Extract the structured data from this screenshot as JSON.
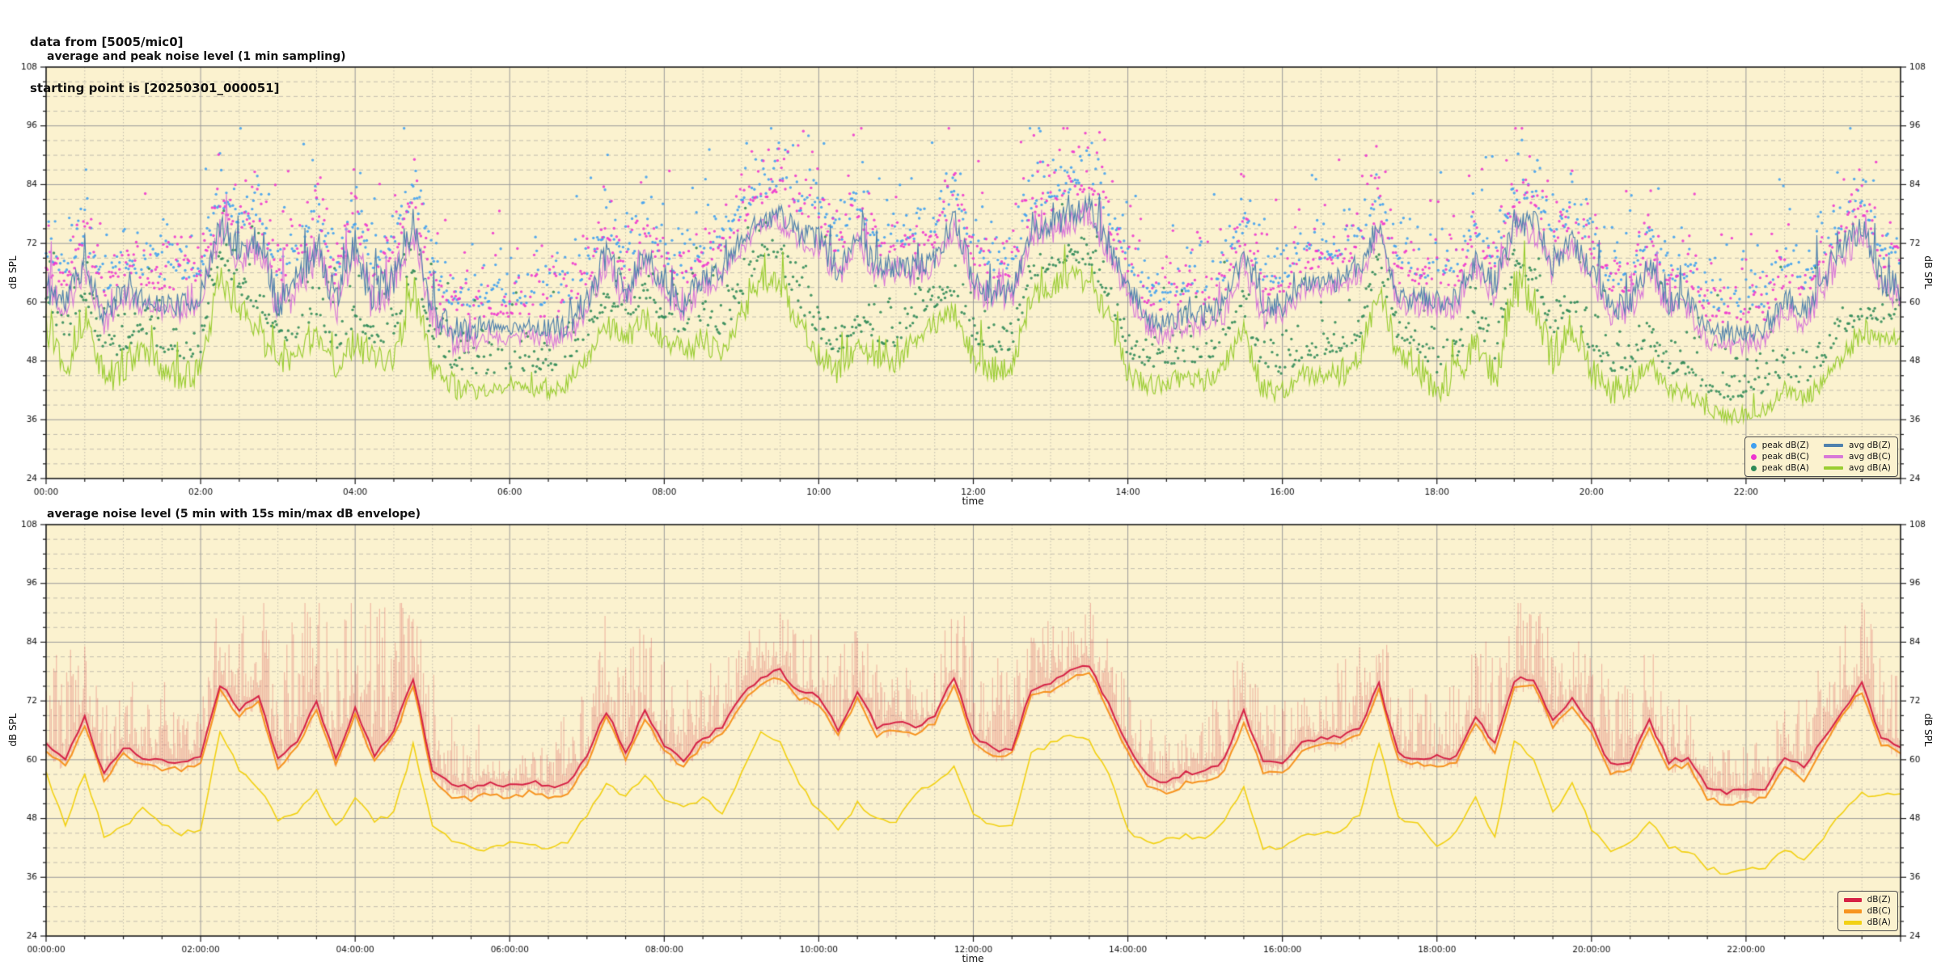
{
  "header": {
    "line1": "data from [5005/mic0]",
    "line2": "starting point is [20250301_000051]"
  },
  "chart_data": {
    "type": "line",
    "x_unit": "hours",
    "x_range": [
      0,
      24
    ],
    "keyframe_step_hours": 0.25,
    "y_axis": {
      "label": "dB SPL",
      "ylim": [
        24,
        108
      ],
      "major_ticks": [
        24,
        36,
        48,
        60,
        72,
        84,
        96,
        108
      ],
      "minor_step_db": 3
    },
    "x_axis": {
      "label": "time",
      "major_step_hours": 2,
      "minor_step_hours": 0.5
    },
    "styles": {
      "plot_bg": "#fbf2cf",
      "grid_major": "#9a9a9a",
      "grid_minor": "#c2bdae",
      "spine": "#1a1a1a",
      "tick_label_color": "#111111"
    },
    "keyframes": {
      "dbz": [
        63.0,
        60.0,
        68.5,
        57.0,
        62.5,
        60.5,
        59.7,
        59.5,
        61.0,
        75.5,
        70.5,
        73.0,
        60.0,
        64.0,
        71.9,
        60.0,
        71.0,
        61.0,
        66.0,
        76.5,
        58.0,
        54.5,
        54.3,
        55.3,
        54.5,
        55.5,
        54.5,
        55.2,
        60.5,
        70.0,
        61.4,
        70.0,
        63.0,
        60.0,
        64.5,
        66.5,
        73.0,
        77.0,
        78.0,
        74.0,
        73.0,
        66.0,
        74.0,
        66.5,
        67.5,
        67.0,
        68.5,
        77.0,
        65.0,
        62.0,
        62.5,
        74.5,
        75.5,
        78.0,
        79.5,
        71.5,
        63.0,
        57.0,
        55.0,
        57.5,
        57.5,
        60.0,
        70.0,
        59.5,
        59.4,
        63.5,
        64.2,
        64.5,
        66.4,
        75.5,
        61.0,
        60.5,
        60.5,
        60.5,
        68.8,
        63.0,
        76.4,
        76.4,
        68.2,
        72.2,
        67.0,
        58.8,
        59.4,
        67.9,
        59.7,
        60.3,
        54.5,
        53.2,
        53.7,
        54.3,
        60.8,
        58.2,
        64.5,
        70.4,
        75.5,
        64.5,
        63.0
      ],
      "dbc": [
        61.6,
        58.6,
        67.1,
        55.6,
        61.1,
        59.1,
        58.3,
        58.1,
        59.6,
        74.1,
        69.1,
        71.6,
        58.6,
        62.6,
        70.5,
        58.6,
        69.6,
        59.6,
        64.6,
        75.1,
        56.6,
        52.2,
        52.0,
        53.0,
        52.2,
        53.2,
        52.2,
        52.9,
        59.1,
        68.6,
        60.0,
        68.6,
        61.6,
        58.6,
        63.1,
        65.1,
        71.6,
        75.6,
        76.6,
        72.6,
        71.6,
        64.6,
        72.6,
        65.1,
        66.1,
        65.6,
        67.1,
        75.6,
        63.6,
        60.6,
        61.1,
        73.1,
        74.1,
        76.6,
        78.1,
        70.1,
        61.6,
        54.7,
        52.7,
        55.2,
        55.2,
        57.7,
        67.7,
        57.2,
        57.1,
        62.1,
        62.8,
        63.1,
        65.0,
        74.1,
        59.6,
        59.1,
        59.1,
        59.1,
        67.4,
        61.6,
        75.0,
        75.0,
        66.8,
        70.8,
        65.6,
        57.4,
        58.0,
        66.5,
        58.3,
        58.9,
        52.2,
        50.9,
        51.4,
        52.0,
        58.5,
        55.9,
        63.1,
        69.0,
        74.1,
        63.1,
        61.6
      ],
      "dba": [
        57.0,
        47.0,
        57.5,
        44.5,
        46.0,
        50.5,
        46.5,
        45.0,
        45.5,
        65.5,
        58.0,
        54.5,
        47.5,
        48.8,
        53.6,
        46.3,
        52.2,
        47.6,
        49.0,
        62.9,
        47.0,
        43.0,
        42.0,
        41.8,
        43.0,
        42.2,
        42.0,
        43.5,
        48.5,
        55.5,
        52.3,
        57.0,
        52.0,
        50.0,
        52.5,
        49.0,
        57.5,
        65.5,
        64.0,
        55.0,
        49.5,
        45.5,
        51.0,
        48.0,
        47.5,
        52.8,
        55.5,
        58.2,
        48.5,
        46.3,
        46.6,
        61.0,
        63.3,
        65.0,
        64.0,
        57.0,
        45.5,
        43.0,
        43.7,
        44.5,
        43.7,
        48.0,
        54.0,
        42.0,
        41.5,
        45.0,
        45.2,
        45.5,
        49.0,
        63.5,
        48.0,
        46.8,
        42.1,
        45.0,
        52.5,
        44.0,
        63.9,
        60.0,
        49.0,
        55.4,
        46.0,
        41.5,
        43.0,
        47.5,
        42.1,
        41.5,
        38.0,
        36.5,
        37.2,
        38.0,
        42.0,
        39.5,
        44.0,
        49.2,
        53.2,
        52.5,
        52.8
      ]
    },
    "charts": [
      {
        "id": "top",
        "title": "average and peak noise level (1 min sampling)",
        "sampling_minutes": 1,
        "x_tick_labels": [
          "00:00",
          "02:00",
          "04:00",
          "06:00",
          "08:00",
          "10:00",
          "12:00",
          "14:00",
          "16:00",
          "18:00",
          "20:00",
          "22:00"
        ],
        "scatter": [
          {
            "name": "peak dB(Z)",
            "key": "dbz",
            "color": "#3f9ff0",
            "base_offset": 4.5,
            "spread": 4.2
          },
          {
            "name": "peak dB(C)",
            "key": "dbc",
            "color": "#ee35cf",
            "base_offset": 4.2,
            "spread": 4.5
          },
          {
            "name": "peak dB(A)",
            "key": "dba",
            "color": "#2f8a58",
            "base_offset": 3.5,
            "spread": 3.2
          }
        ],
        "lines": [
          {
            "name": "avg dB(Z)",
            "key": "dbz",
            "color": "#4f81ad"
          },
          {
            "name": "avg dB(C)",
            "key": "dbc",
            "color": "#d878d8"
          },
          {
            "name": "avg dB(A)",
            "key": "dba",
            "color": "#9acd32"
          }
        ]
      },
      {
        "id": "bottom",
        "title": "average noise level (5 min with 15s min/max dB envelope)",
        "sampling_minutes": 5,
        "x_tick_labels": [
          "00:00:00",
          "02:00:00",
          "04:00:00",
          "06:00:00",
          "08:00:00",
          "10:00:00",
          "12:00:00",
          "14:00:00",
          "16:00:00",
          "18:00:00",
          "20:00:00",
          "22:00:00"
        ],
        "envelope": {
          "source": "dbz",
          "color": "rgba(214,60,70,0.30)"
        },
        "lines": [
          {
            "name": "dB(Z)",
            "key": "dbz",
            "color": "#d62246"
          },
          {
            "name": "dB(C)",
            "key": "dbc",
            "color": "#f79420"
          },
          {
            "name": "dB(A)",
            "key": "dba",
            "color": "#f2d113"
          }
        ]
      }
    ]
  }
}
